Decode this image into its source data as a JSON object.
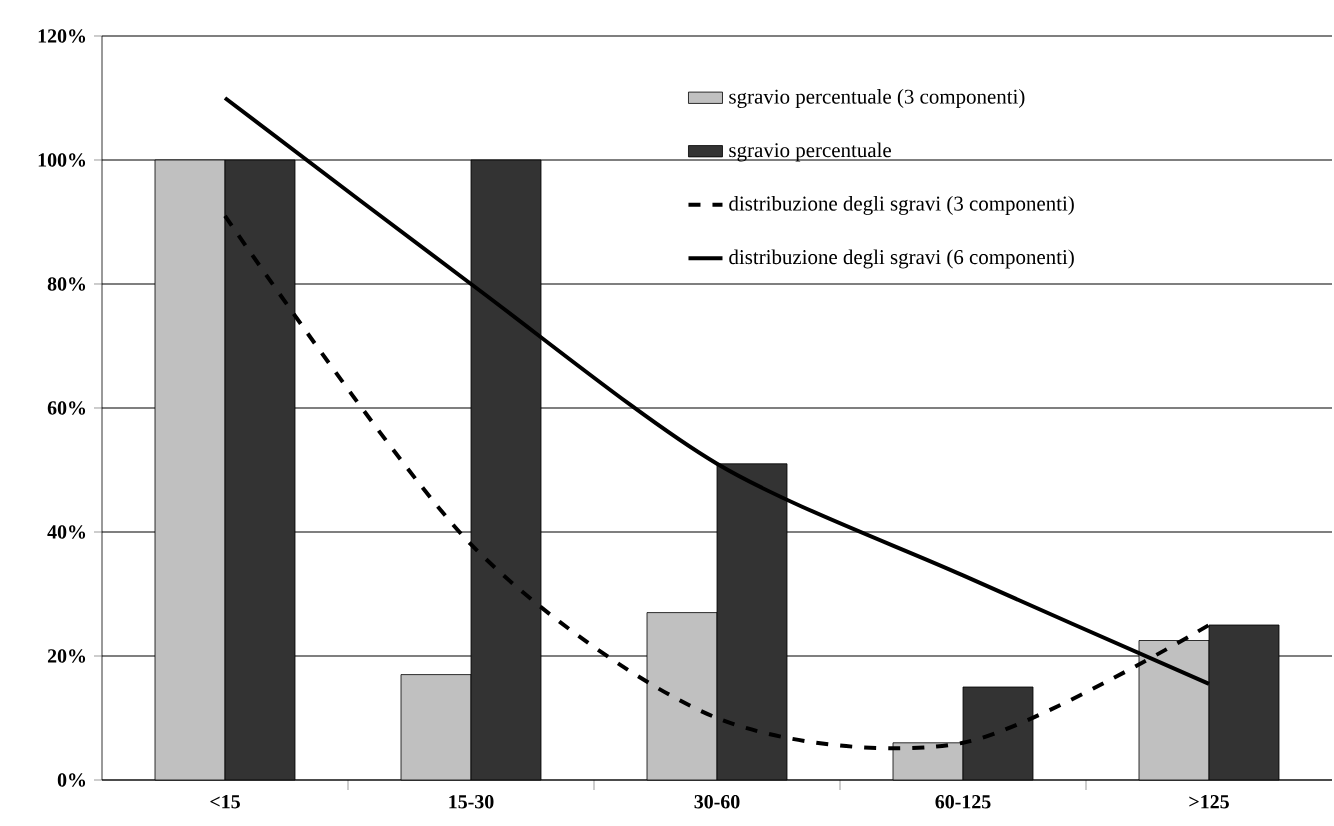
{
  "chart_data": {
    "type": "bar",
    "categories": [
      "<15",
      "15-30",
      "30-60",
      "60-125",
      ">125"
    ],
    "series": [
      {
        "name": "sgravio percentuale (3 componenti)",
        "color": "#c0c0c0",
        "values": [
          100,
          17,
          27,
          6,
          22.5
        ]
      },
      {
        "name": "sgravio percentuale",
        "color": "#333333",
        "values": [
          100,
          100,
          51,
          15,
          25
        ]
      },
      {
        "name": "distribuzione degli sgravi (3 componenti)",
        "type": "line",
        "color": "#000000",
        "line_style": "dashed",
        "values": [
          91,
          38,
          10,
          6,
          25
        ]
      },
      {
        "name": "distribuzione degli sgravi (6 componenti)",
        "type": "line",
        "color": "#000000",
        "line_style": "solid",
        "values": [
          110,
          80,
          51,
          33,
          15.5
        ]
      }
    ],
    "ylim": [
      0,
      120
    ],
    "yticks": [
      {
        "value": 0,
        "label": "0%"
      },
      {
        "value": 20,
        "label": "20%"
      },
      {
        "value": 40,
        "label": "40%"
      },
      {
        "value": 60,
        "label": "60%"
      },
      {
        "value": 80,
        "label": "80%"
      },
      {
        "value": 100,
        "label": "100%"
      },
      {
        "value": 120,
        "label": "120%"
      }
    ],
    "grid": "y",
    "legend": "top right"
  }
}
